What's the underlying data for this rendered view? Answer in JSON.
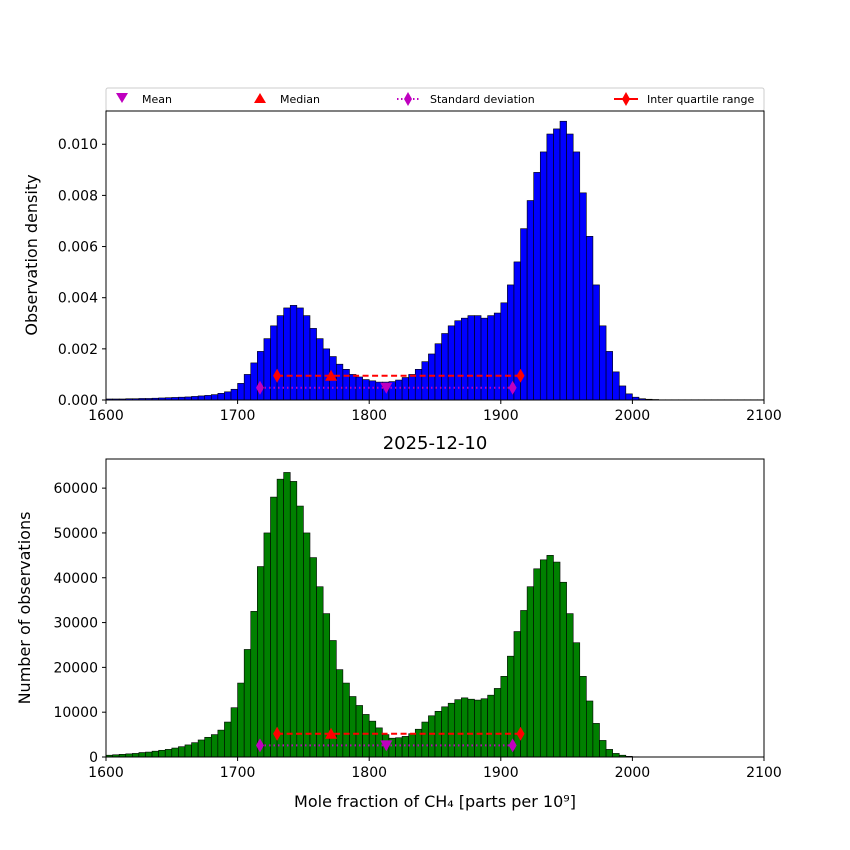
{
  "legend": {
    "mean": "Mean",
    "median": "Median",
    "std": "Standard deviation",
    "iqr": "Inter quartile range"
  },
  "colors": {
    "top_bars": "#0000ff",
    "bottom_bars": "#008000",
    "mean": "#bf00bf",
    "median": "#ff0000",
    "std": "#bf00bf",
    "iqr": "#ff0000"
  },
  "chart_data": [
    {
      "type": "bar",
      "subplot": "top",
      "title": "",
      "xlabel": "",
      "ylabel": "Observation density",
      "xlim": [
        1600,
        2100
      ],
      "ylim": [
        0,
        0.0113
      ],
      "xticks": [
        1600,
        1700,
        1800,
        1900,
        2000,
        2100
      ],
      "xtick_labels": [
        "1600",
        "1700",
        "1800",
        "1900",
        "2000",
        "2100"
      ],
      "yticks": [
        0,
        0.002,
        0.004,
        0.006,
        0.008,
        0.01
      ],
      "ytick_labels": [
        "0.000",
        "0.002",
        "0.004",
        "0.006",
        "0.008",
        "0.010"
      ],
      "bin_start": 1600,
      "bin_width": 5,
      "values": [
        4e-05,
        4e-05,
        4e-05,
        5e-05,
        5e-05,
        6e-05,
        6e-05,
        7e-05,
        8e-05,
        9e-05,
        0.0001,
        0.00011,
        0.00012,
        0.00014,
        0.00016,
        0.00018,
        0.00021,
        0.00026,
        0.00032,
        0.00042,
        0.00065,
        0.001,
        0.00145,
        0.0019,
        0.0024,
        0.0029,
        0.0033,
        0.0036,
        0.0037,
        0.0036,
        0.0033,
        0.0028,
        0.0024,
        0.002,
        0.0017,
        0.0014,
        0.0012,
        0.001,
        0.0009,
        0.0008,
        0.00075,
        0.0007,
        0.0007,
        0.00072,
        0.00078,
        0.00088,
        0.001,
        0.0012,
        0.0015,
        0.0018,
        0.0022,
        0.0026,
        0.0029,
        0.0031,
        0.0032,
        0.0033,
        0.0033,
        0.0032,
        0.0033,
        0.0034,
        0.0038,
        0.0045,
        0.0054,
        0.0067,
        0.0078,
        0.0089,
        0.0097,
        0.0104,
        0.0106,
        0.0109,
        0.0104,
        0.0097,
        0.0081,
        0.0064,
        0.0045,
        0.0029,
        0.0019,
        0.0011,
        0.00055,
        0.00024,
        0.00011,
        5e-05,
        3e-05,
        2e-05,
        1e-05,
        1e-05,
        1e-05,
        1e-05,
        1e-05,
        1e-05,
        1e-05,
        1e-05,
        1e-05,
        1e-05,
        1e-05,
        1e-05,
        1e-05,
        1e-05,
        1e-05,
        1e-05
      ],
      "stats": {
        "mean": {
          "x": 1813,
          "y": 0.00048
        },
        "median": {
          "x": 1771,
          "y": 0.00095
        },
        "std": {
          "x": [
            1717,
            1909
          ],
          "y": 0.00048
        },
        "iqr": {
          "x": [
            1730,
            1915
          ],
          "y": 0.00095
        }
      }
    },
    {
      "type": "bar",
      "subplot": "bottom",
      "title": "2025-12-10",
      "xlabel": "Mole fraction of CH₄ [parts per 10⁹]",
      "ylabel": "Number of observations",
      "xlim": [
        1600,
        2100
      ],
      "ylim": [
        0,
        66500
      ],
      "xticks": [
        1600,
        1700,
        1800,
        1900,
        2000,
        2100
      ],
      "xtick_labels": [
        "1600",
        "1700",
        "1800",
        "1900",
        "2000",
        "2100"
      ],
      "yticks": [
        0,
        10000,
        20000,
        30000,
        40000,
        50000,
        60000
      ],
      "ytick_labels": [
        "0",
        "10000",
        "20000",
        "30000",
        "40000",
        "50000",
        "60000"
      ],
      "bin_start": 1600,
      "bin_width": 5,
      "values": [
        400,
        500,
        600,
        700,
        800,
        1000,
        1100,
        1300,
        1500,
        1700,
        2000,
        2300,
        2700,
        3200,
        3800,
        4400,
        5000,
        6000,
        7800,
        11000,
        16500,
        24000,
        32500,
        42500,
        50000,
        58000,
        62000,
        63500,
        61500,
        56000,
        50000,
        44500,
        38000,
        32000,
        26000,
        19500,
        16500,
        13500,
        11500,
        9500,
        8000,
        6500,
        5000,
        4200,
        4300,
        4600,
        5200,
        6200,
        7800,
        9200,
        10200,
        11200,
        12000,
        12800,
        13200,
        12900,
        12700,
        13000,
        13800,
        15300,
        18000,
        22500,
        28000,
        32700,
        38000,
        42000,
        44000,
        45000,
        43500,
        39000,
        32000,
        25500,
        18000,
        12500,
        7500,
        3700,
        1700,
        800,
        400,
        150,
        50,
        20,
        10,
        0,
        0,
        0,
        0,
        0,
        0,
        0,
        0,
        0,
        0,
        0,
        0,
        0,
        0,
        0,
        0,
        0
      ],
      "stats": {
        "mean": {
          "x": 1813,
          "y": 2600
        },
        "median": {
          "x": 1771,
          "y": 5200
        },
        "std": {
          "x": [
            1717,
            1909
          ],
          "y": 2600
        },
        "iqr": {
          "x": [
            1730,
            1915
          ],
          "y": 5200
        }
      }
    }
  ]
}
